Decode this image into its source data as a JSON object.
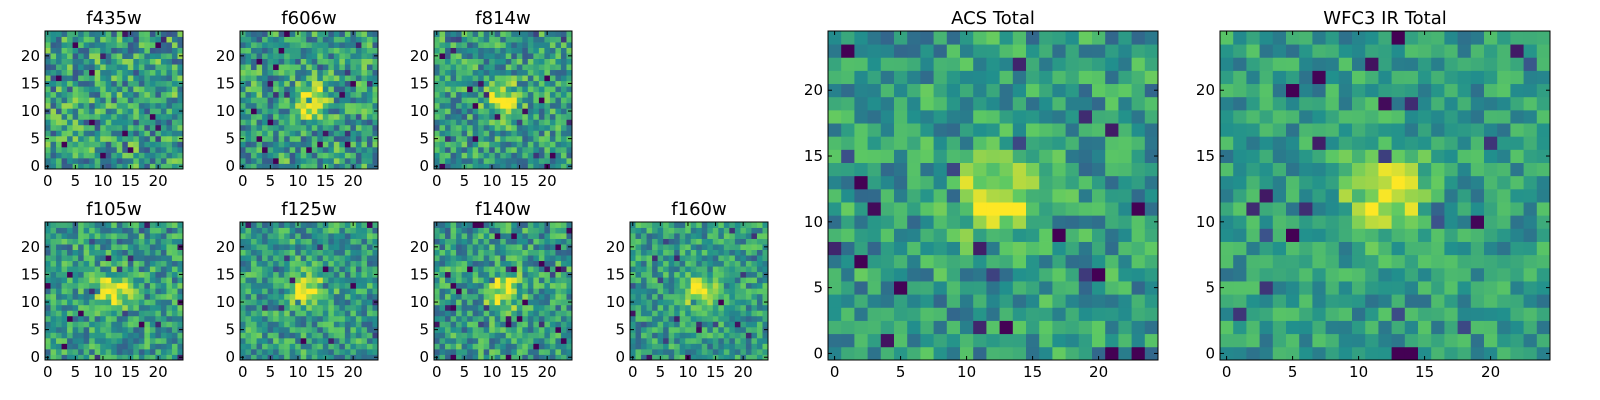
{
  "figure": {
    "background": "#ffffff"
  },
  "colormap": [
    "#440154",
    "#3b528b",
    "#21908d",
    "#5dc963",
    "#fde725"
  ],
  "chart_data": [
    {
      "type": "heatmap",
      "title": "f435w",
      "size": [
        25,
        25
      ],
      "xticks": [
        0,
        5,
        10,
        15,
        20
      ],
      "yticks": [
        0,
        5,
        10,
        15,
        20
      ],
      "xlim": [
        -0.5,
        24.5
      ],
      "ylim": [
        -0.5,
        24.5
      ],
      "source_center": null,
      "noise": 0.3,
      "seed": 11
    },
    {
      "type": "heatmap",
      "title": "f606w",
      "size": [
        25,
        25
      ],
      "xticks": [
        0,
        5,
        10,
        15,
        20
      ],
      "yticks": [
        0,
        5,
        10,
        15,
        20
      ],
      "xlim": [
        -0.5,
        24.5
      ],
      "ylim": [
        -0.5,
        24.5
      ],
      "source_center": [
        12,
        12
      ],
      "noise": 0.28,
      "seed": 23
    },
    {
      "type": "heatmap",
      "title": "f814w",
      "size": [
        25,
        25
      ],
      "xticks": [
        0,
        5,
        10,
        15,
        20
      ],
      "yticks": [
        0,
        5,
        10,
        15,
        20
      ],
      "xlim": [
        -0.5,
        24.5
      ],
      "ylim": [
        -0.5,
        24.5
      ],
      "source_center": [
        12,
        12
      ],
      "noise": 0.26,
      "seed": 37
    },
    {
      "type": "heatmap",
      "title": "f105w",
      "size": [
        25,
        25
      ],
      "xticks": [
        0,
        5,
        10,
        15,
        20
      ],
      "yticks": [
        0,
        5,
        10,
        15,
        20
      ],
      "xlim": [
        -0.5,
        24.5
      ],
      "ylim": [
        -0.5,
        24.5
      ],
      "source_center": [
        12,
        12
      ],
      "noise": 0.24,
      "seed": 41
    },
    {
      "type": "heatmap",
      "title": "f125w",
      "size": [
        25,
        25
      ],
      "xticks": [
        0,
        5,
        10,
        15,
        20
      ],
      "yticks": [
        0,
        5,
        10,
        15,
        20
      ],
      "xlim": [
        -0.5,
        24.5
      ],
      "ylim": [
        -0.5,
        24.5
      ],
      "source_center": [
        12,
        12
      ],
      "noise": 0.24,
      "seed": 53
    },
    {
      "type": "heatmap",
      "title": "f140w",
      "size": [
        25,
        25
      ],
      "xticks": [
        0,
        5,
        10,
        15,
        20
      ],
      "yticks": [
        0,
        5,
        10,
        15,
        20
      ],
      "xlim": [
        -0.5,
        24.5
      ],
      "ylim": [
        -0.5,
        24.5
      ],
      "source_center": [
        12,
        12
      ],
      "noise": 0.25,
      "seed": 67
    },
    {
      "type": "heatmap",
      "title": "f160w",
      "size": [
        25,
        25
      ],
      "xticks": [
        0,
        5,
        10,
        15,
        20
      ],
      "yticks": [
        0,
        5,
        10,
        15,
        20
      ],
      "xlim": [
        -0.5,
        24.5
      ],
      "ylim": [
        -0.5,
        24.5
      ],
      "source_center": [
        12,
        12
      ],
      "noise": 0.22,
      "seed": 79
    },
    {
      "type": "heatmap",
      "title": "ACS Total",
      "size": [
        25,
        25
      ],
      "xticks": [
        0,
        5,
        10,
        15,
        20
      ],
      "yticks": [
        0,
        5,
        10,
        15,
        20
      ],
      "xlim": [
        -0.5,
        24.5
      ],
      "ylim": [
        -0.5,
        24.5
      ],
      "source_center": [
        12,
        12
      ],
      "noise": 0.22,
      "seed": 83
    },
    {
      "type": "heatmap",
      "title": "WFC3 IR Total",
      "size": [
        25,
        25
      ],
      "xticks": [
        0,
        5,
        10,
        15,
        20
      ],
      "yticks": [
        0,
        5,
        10,
        15,
        20
      ],
      "xlim": [
        -0.5,
        24.5
      ],
      "ylim": [
        -0.5,
        24.5
      ],
      "source_center": [
        12,
        12
      ],
      "noise": 0.18,
      "seed": 97
    }
  ]
}
